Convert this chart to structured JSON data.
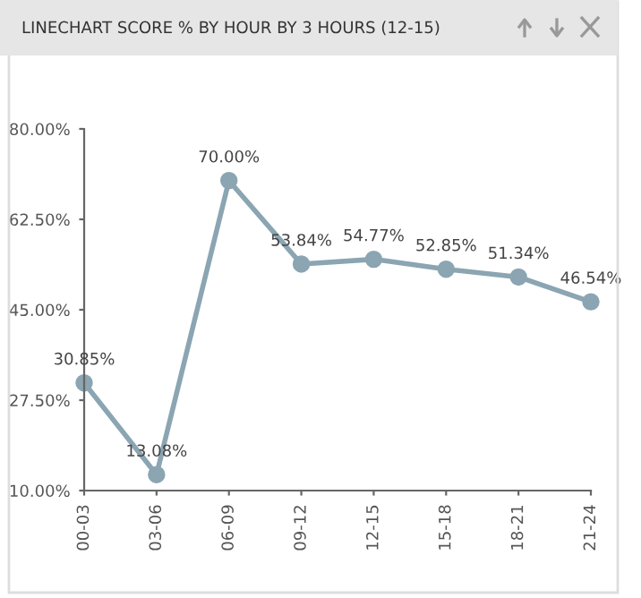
{
  "chart_data": {
    "type": "line",
    "title": "LINECHART SCORE % BY HOUR BY 3 HOURS (12-15)",
    "categories": [
      "00-03",
      "03-06",
      "06-09",
      "09-12",
      "12-15",
      "15-18",
      "18-21",
      "21-24"
    ],
    "series": [
      {
        "color": "#8ba5b2",
        "values": [
          30.85,
          13.08,
          70.0,
          53.84,
          54.77,
          52.85,
          51.34,
          46.54
        ],
        "value_labels": [
          "30.85%",
          "13.08%",
          "70.00%",
          "53.84%",
          "54.77%",
          "52.85%",
          "51.34%",
          "46.54%"
        ]
      }
    ],
    "ylim": [
      10,
      80
    ],
    "yticks": [
      {
        "value": 10,
        "label": "10.00%"
      },
      {
        "value": 27.5,
        "label": "27.50%"
      },
      {
        "value": 45,
        "label": "45.00%"
      },
      {
        "value": 62.5,
        "label": "62.50%"
      },
      {
        "value": 80,
        "label": "80.00%"
      }
    ],
    "marker": "circle",
    "line_style": "solid"
  }
}
